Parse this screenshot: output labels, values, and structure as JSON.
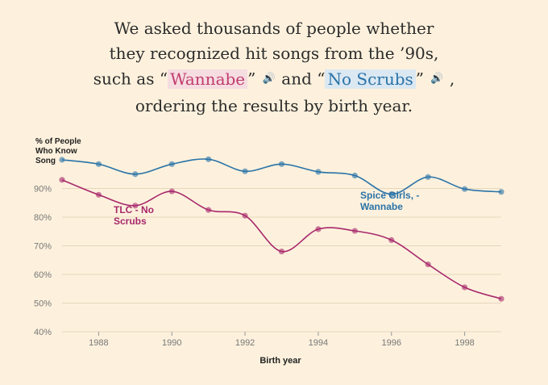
{
  "headline": {
    "line1": "We asked thousands of people whether",
    "line2": "they recognized hit songs from the ’90s,",
    "line3_pre": "such as “",
    "song_a": "Wannabe",
    "line3_mid": "” ",
    "line3_and": " and “",
    "song_b": "No Scrubs",
    "line3_end": "” ",
    "line3_tail": " ,",
    "line4": "ordering the results by birth year.",
    "speaker_icon": "🔊"
  },
  "colors": {
    "background": "#fdf1dd",
    "series_a": "#2a73a8",
    "series_b": "#a8286c"
  },
  "chart_data": {
    "type": "line",
    "ylabel_lines": [
      "% of People",
      "Who Know",
      "Song"
    ],
    "xlabel": "Birth year",
    "xlim": [
      1987,
      1999
    ],
    "ylim": [
      40,
      100
    ],
    "x_ticks": [
      1988,
      1990,
      1992,
      1994,
      1996,
      1998
    ],
    "x_tick_labels": [
      "1988",
      "1990",
      "1992",
      "1994",
      "1996",
      "1998"
    ],
    "y_ticks": [
      40,
      50,
      60,
      70,
      80,
      90
    ],
    "y_tick_labels": [
      "40%",
      "50%",
      "60%",
      "70%",
      "80%",
      "90%"
    ],
    "grid": true,
    "series": [
      {
        "key": "a",
        "label_lines": [
          "Spice Girls, -",
          "Wannabe"
        ],
        "color": "#2a73a8",
        "x": [
          1987,
          1988,
          1989,
          1990,
          1991,
          1992,
          1993,
          1994,
          1995,
          1996,
          1997,
          1998,
          1999
        ],
        "values": [
          100,
          98.5,
          95,
          98.5,
          100.2,
          96,
          98.5,
          95.8,
          94.5,
          88,
          94,
          89.8,
          88.8
        ]
      },
      {
        "key": "b",
        "label_lines": [
          "TLC - No",
          "Scrubs"
        ],
        "color": "#a8286c",
        "x": [
          1987,
          1988,
          1989,
          1990,
          1991,
          1992,
          1993,
          1994,
          1995,
          1996,
          1997,
          1998,
          1999
        ],
        "values": [
          93,
          87.8,
          84,
          89,
          82.5,
          80.5,
          68,
          75.8,
          75.2,
          72,
          63.5,
          55.5,
          51.5
        ]
      }
    ]
  }
}
